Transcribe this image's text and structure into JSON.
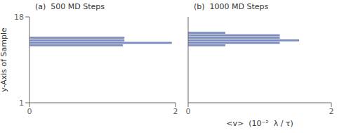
{
  "chart_data": [
    {
      "type": "bar",
      "orientation": "horizontal",
      "title": "(a)  500 MD Steps",
      "y": [
        13.8,
        13.3,
        12.8,
        12.3
      ],
      "values": [
        1.3,
        1.3,
        1.95,
        1.28
      ],
      "color": "#7b8bbf",
      "xlim": [
        0,
        2
      ],
      "ylim": [
        1,
        18
      ],
      "xticks": [
        0,
        2
      ],
      "yticks": [
        1,
        18
      ],
      "ylabel": "y-Axis of Sample"
    },
    {
      "type": "bar",
      "orientation": "horizontal",
      "title": "(b)  1000 MD Steps",
      "y": [
        14.8,
        14.3,
        13.8,
        13.3,
        12.8,
        12.3
      ],
      "values": [
        0.52,
        1.28,
        1.28,
        1.55,
        1.28,
        0.52
      ],
      "color": "#7b8bbf",
      "xlim": [
        0,
        2
      ],
      "ylim": [
        1,
        18
      ],
      "xticks": [
        0,
        2
      ],
      "yticks": [
        1,
        18
      ],
      "xlabel": "<v>  (10⁻²  λ / τ)",
      "tick_labels": "x"
    }
  ]
}
